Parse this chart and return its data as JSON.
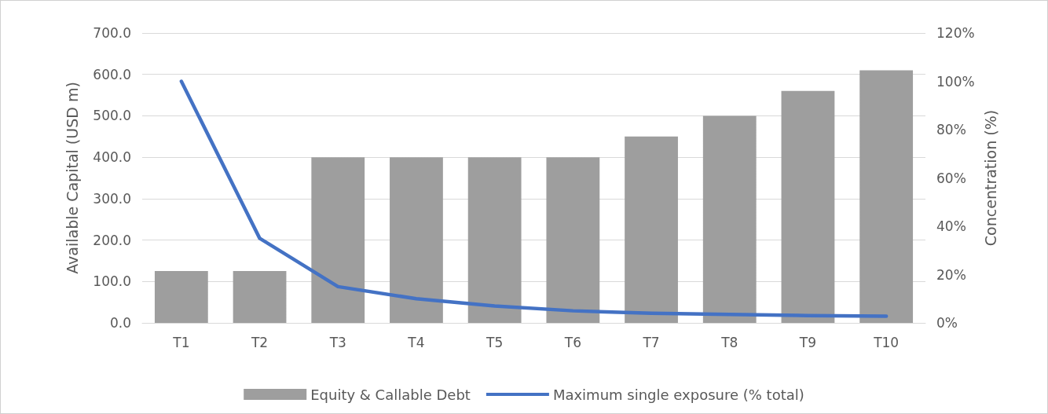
{
  "chart_data": {
    "type": "bar",
    "categories": [
      "T1",
      "T2",
      "T3",
      "T4",
      "T5",
      "T6",
      "T7",
      "T8",
      "T9",
      "T10"
    ],
    "ylabel": "Available Capital (USD m)",
    "y2label": "Concentration (%)",
    "series": [
      {
        "name": "Equity & Callable Debt",
        "color": "#9e9e9e",
        "values": [
          125,
          125,
          400,
          400,
          400,
          400,
          450,
          500,
          560,
          610
        ]
      },
      {
        "name": "Maximum single exposure (% total)",
        "type": "line",
        "axis": "y2",
        "color": "#4472c4",
        "values": [
          100,
          35,
          15,
          10,
          7,
          5,
          4,
          3.5,
          3,
          2.8
        ]
      }
    ],
    "ylim": [
      0,
      700
    ],
    "yticks": [
      {
        "value": 0,
        "label": "0.0"
      },
      {
        "value": 100,
        "label": "100.0"
      },
      {
        "value": 200,
        "label": "200.0"
      },
      {
        "value": 300,
        "label": "300.0"
      },
      {
        "value": 400,
        "label": "400.0"
      },
      {
        "value": 500,
        "label": "500.0"
      },
      {
        "value": 600,
        "label": "600.0"
      },
      {
        "value": 700,
        "label": "700.0"
      }
    ],
    "y2lim": [
      0,
      120
    ],
    "y2ticks": [
      {
        "value": 0,
        "label": "0%"
      },
      {
        "value": 20,
        "label": "20%"
      },
      {
        "value": 40,
        "label": "40%"
      },
      {
        "value": 60,
        "label": "60%"
      },
      {
        "value": 80,
        "label": "80%"
      },
      {
        "value": 100,
        "label": "100%"
      },
      {
        "value": 120,
        "label": "120%"
      }
    ],
    "grid": "y",
    "legend": "bottom",
    "marker": "none",
    "line_style": "solid"
  }
}
